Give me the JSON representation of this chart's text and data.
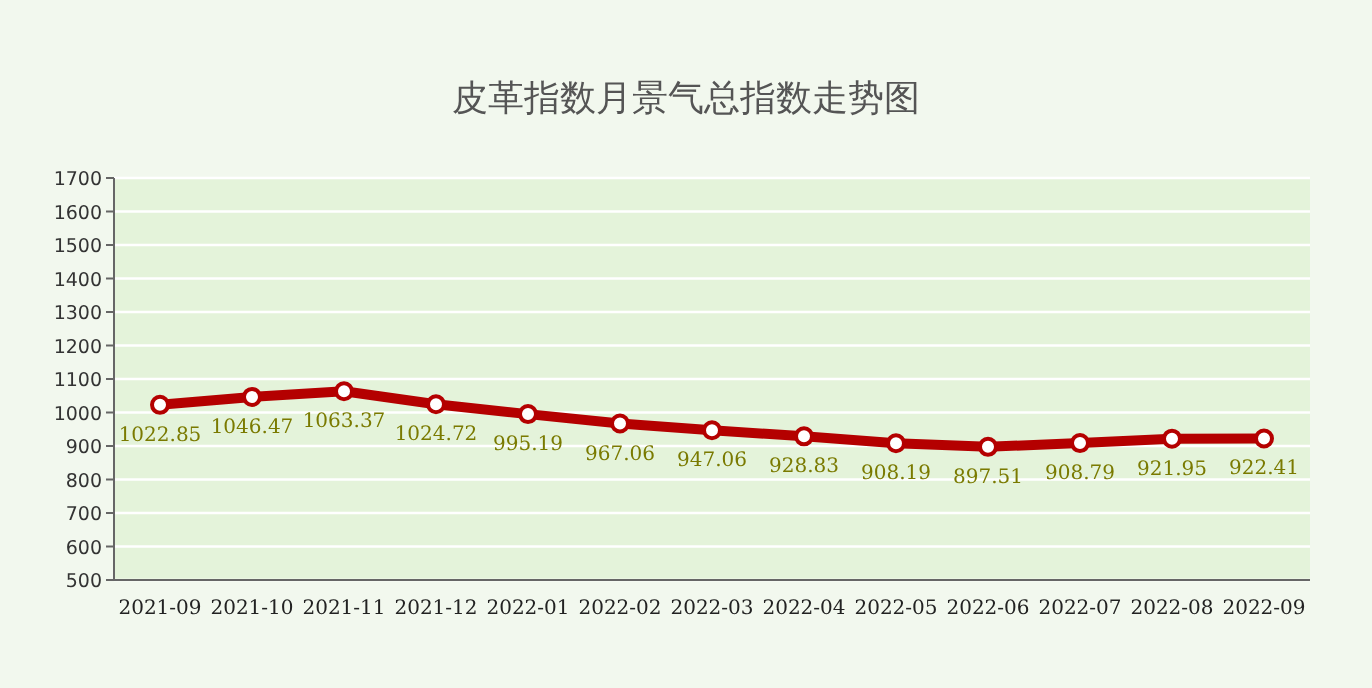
{
  "chart_data": {
    "type": "line",
    "title": "皮革指数月景气总指数走势图",
    "categories": [
      "2021-09",
      "2021-10",
      "2021-11",
      "2021-12",
      "2022-01",
      "2022-02",
      "2022-03",
      "2022-04",
      "2022-05",
      "2022-06",
      "2022-07",
      "2022-08",
      "2022-09"
    ],
    "series": [
      {
        "color": "#b40000",
        "values": [
          1022.85,
          1046.47,
          1063.37,
          1024.72,
          995.19,
          967.06,
          947.06,
          928.83,
          908.19,
          897.51,
          908.79,
          921.95,
          922.41
        ]
      }
    ],
    "ylim": [
      500,
      1700
    ],
    "yticks": [
      500,
      600,
      700,
      800,
      900,
      1000,
      1100,
      1200,
      1300,
      1400,
      1500,
      1600,
      1700
    ],
    "grid": "y",
    "marker": "circle",
    "data_labels": true
  }
}
